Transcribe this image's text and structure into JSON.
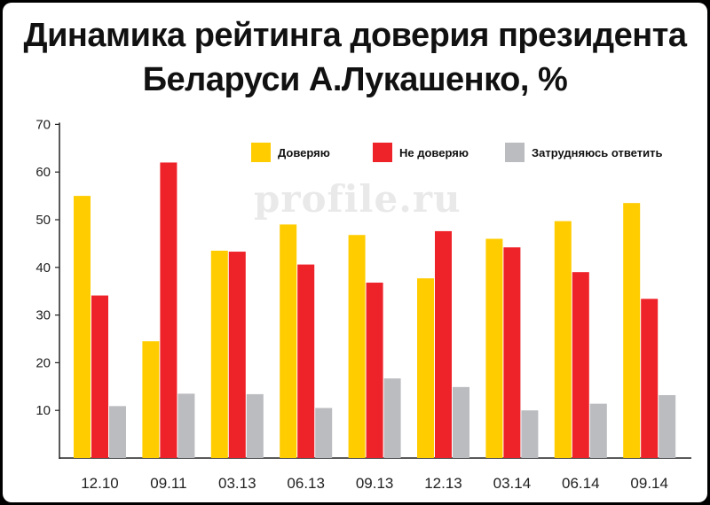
{
  "chart_data": {
    "type": "bar",
    "title_line1": "Динамика рейтинга доверия президента",
    "title_line2": "Беларуси А.Лукашенко, %",
    "watermark": "profile.ru",
    "categories": [
      "12.10",
      "09.11",
      "03.13",
      "06.13",
      "09.13",
      "12.13",
      "03.14",
      "06.14",
      "09.14"
    ],
    "series": [
      {
        "name": "Доверяю",
        "color": "#ffcc00",
        "values": [
          55.0,
          24.5,
          43.5,
          49.0,
          46.8,
          37.7,
          46.0,
          49.7,
          53.5
        ]
      },
      {
        "name": "Не доверяю",
        "color": "#ee2229",
        "values": [
          34.1,
          62.0,
          43.3,
          40.6,
          36.8,
          47.6,
          44.2,
          39.0,
          33.4
        ]
      },
      {
        "name": "Затрудняюсь ответить",
        "color": "#bbbcc0",
        "values": [
          10.9,
          13.5,
          13.4,
          10.5,
          16.7,
          14.9,
          10.0,
          11.4,
          13.2
        ]
      }
    ],
    "yticks": [
      10,
      20,
      30,
      40,
      50,
      60,
      70
    ],
    "ylim": [
      0,
      70
    ],
    "grid": false,
    "legend_position": "top-right"
  }
}
